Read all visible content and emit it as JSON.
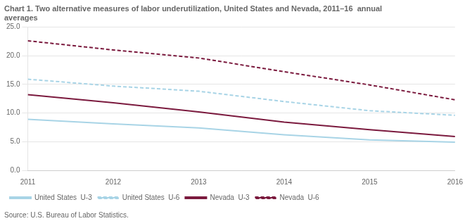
{
  "chart_data": {
    "type": "line",
    "title": "Chart 1. Two alternative measures of labor underutilization, United States and Nevada, 2011–16  annual\naverages",
    "annotations": [
      "Source: U.S. Bureau of Labor Statistics."
    ],
    "x": [
      2011,
      2012,
      2013,
      2014,
      2015,
      2016
    ],
    "series": [
      {
        "name": "United States  U-3",
        "color": "#a8d4e6",
        "line_style": "solid",
        "values": [
          8.9,
          8.1,
          7.4,
          6.2,
          5.3,
          4.9
        ]
      },
      {
        "name": "United States  U-6",
        "color": "#a8d4e6",
        "line_style": "dashed",
        "values": [
          15.9,
          14.7,
          13.8,
          12.0,
          10.4,
          9.6
        ]
      },
      {
        "name": "Nevada  U-3",
        "color": "#7b1a3e",
        "line_style": "solid",
        "values": [
          13.2,
          11.8,
          10.2,
          8.4,
          7.1,
          5.9
        ]
      },
      {
        "name": "Nevada  U-6",
        "color": "#7b1a3e",
        "line_style": "dashed",
        "values": [
          22.6,
          21.0,
          19.6,
          17.2,
          14.9,
          12.3
        ]
      }
    ],
    "xlim": [
      2011,
      2016
    ],
    "xticks": [
      2011,
      2012,
      2013,
      2014,
      2015,
      2016
    ],
    "ylim": [
      0,
      25
    ],
    "yticks": [
      {
        "value": 0,
        "label": "0.0"
      },
      {
        "value": 5,
        "label": "5.0"
      },
      {
        "value": 10,
        "label": "10.0"
      },
      {
        "value": 15,
        "label": "15.0"
      },
      {
        "value": 20,
        "label": "20.0"
      },
      {
        "value": 25,
        "label": "25.0"
      }
    ],
    "grid": true,
    "legend": "bottom"
  }
}
